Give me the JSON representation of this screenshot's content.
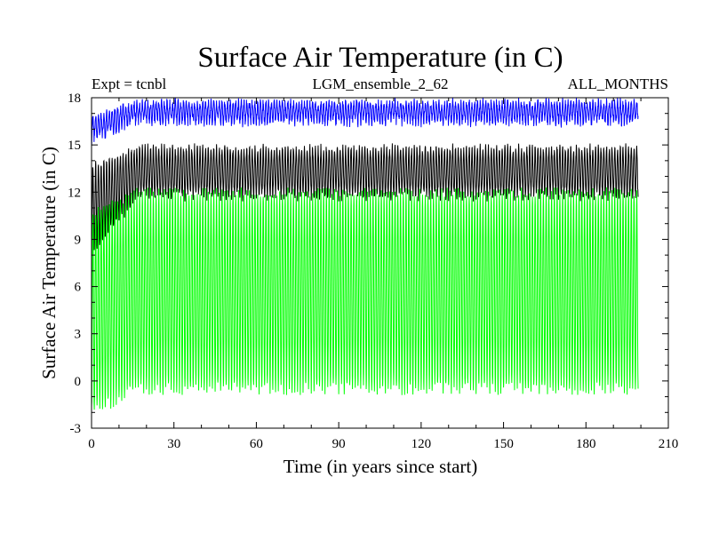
{
  "chart_data": {
    "type": "line",
    "title": "Surface Air Temperature (in C)",
    "subtitle_left": "Expt = tcnbl",
    "subtitle_center": "LGM_ensemble_2_62",
    "subtitle_right": "ALL_MONTHS",
    "xlabel": "Time (in years since start)",
    "ylabel": "Surface Air Temperature (in C)",
    "xlim": [
      0,
      210
    ],
    "ylim": [
      -3,
      18
    ],
    "xticks": [
      0,
      30,
      60,
      90,
      120,
      150,
      180,
      210
    ],
    "yticks": [
      -3,
      0,
      3,
      6,
      9,
      12,
      15,
      18
    ],
    "x_range_data": [
      0,
      199
    ],
    "series": [
      {
        "name": "upper (blue)",
        "color": "#0000ff",
        "annual_min_start": 15.3,
        "annual_min_end": 16.5,
        "annual_max_start": 16.4,
        "annual_max_end": 17.7,
        "typical_range": [
          16.0,
          17.3
        ]
      },
      {
        "name": "middle (black)",
        "color": "#000000",
        "annual_min_start": 8.0,
        "annual_min_end": 11.8,
        "annual_max_start": 13.3,
        "annual_max_end": 14.8,
        "typical_range": [
          11.5,
          14.5
        ]
      },
      {
        "name": "lower (green)",
        "color": "#00ff00",
        "annual_min_start": -2.0,
        "annual_min_end": -0.5,
        "annual_max_start": 10.0,
        "annual_max_end": 12.0,
        "typical_range": [
          0.0,
          11.5
        ]
      }
    ]
  }
}
